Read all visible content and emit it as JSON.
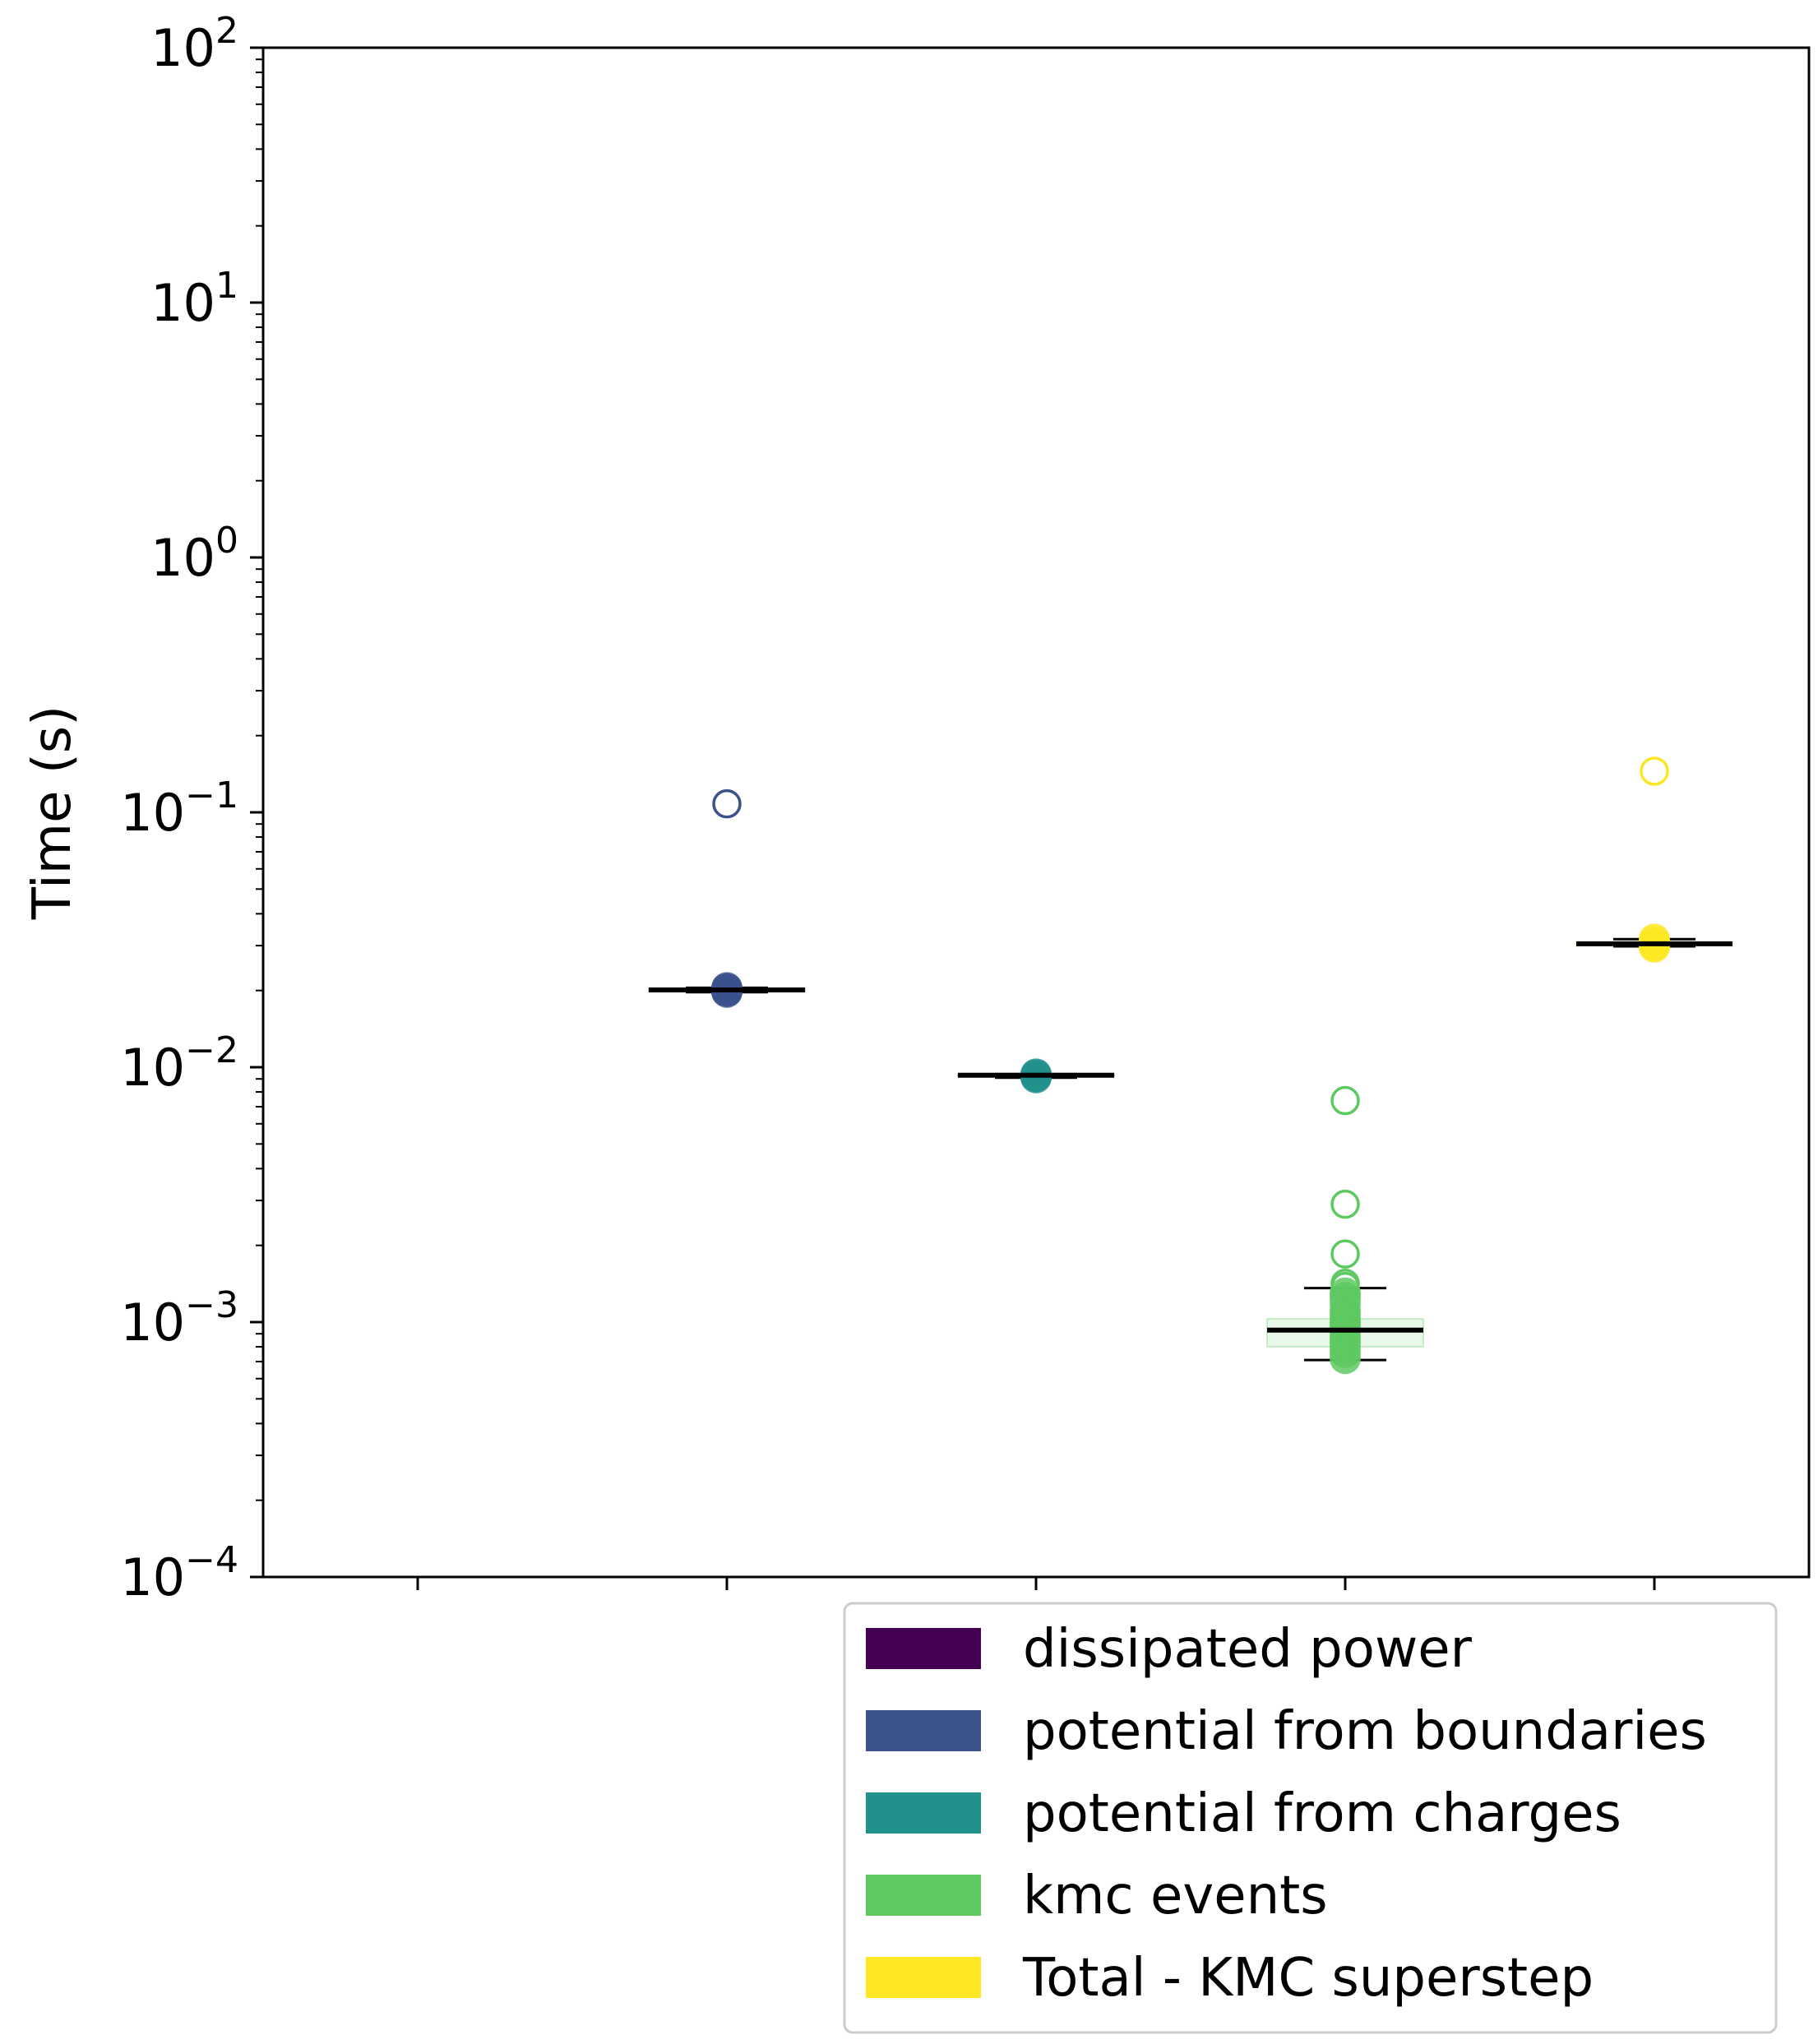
{
  "chart_data": {
    "type": "box",
    "ylabel": "Time (s)",
    "yscale": "log",
    "ylim": [
      0.0001,
      100
    ],
    "yticks": [
      {
        "base": "10",
        "exp": "2"
      },
      {
        "base": "10",
        "exp": "1"
      },
      {
        "base": "10",
        "exp": "0"
      },
      {
        "base": "10",
        "exp": "−1"
      },
      {
        "base": "10",
        "exp": "−2"
      },
      {
        "base": "10",
        "exp": "−3"
      },
      {
        "base": "10",
        "exp": "−4"
      }
    ],
    "xlim": [
      0.5,
      5.5
    ],
    "xticks": [
      1,
      2,
      3,
      4,
      5
    ],
    "grid": false,
    "legend_position": "below-right",
    "series": [
      {
        "name": "dissipated power",
        "x": 1,
        "color": "#440154",
        "samples": [],
        "median": null,
        "q1": null,
        "q3": null,
        "whisker_low": null,
        "whisker_high": null,
        "outliers": []
      },
      {
        "name": "potential from boundaries",
        "x": 2,
        "color": "#3b528b",
        "samples": [
          0.0197,
          0.0199,
          0.0201,
          0.0203,
          0.0205
        ],
        "median": 0.0201,
        "q1": 0.0199,
        "q3": 0.0203,
        "whisker_low": 0.0197,
        "whisker_high": 0.0205,
        "outliers": [
          0.108
        ]
      },
      {
        "name": "potential from charges",
        "x": 3,
        "color": "#21918c",
        "samples": [
          0.0091,
          0.0092,
          0.0093,
          0.0094
        ],
        "median": 0.0093,
        "q1": 0.0092,
        "q3": 0.0094,
        "whisker_low": 0.0091,
        "whisker_high": 0.0094,
        "outliers": []
      },
      {
        "name": "kmc events",
        "x": 4,
        "color": "#5ec962",
        "samples": [
          0.00072,
          0.00076,
          0.0008,
          0.00084,
          0.00088,
          0.00092,
          0.00096,
          0.001,
          0.00105,
          0.0011,
          0.00118,
          0.00125,
          0.0013
        ],
        "median": 0.00093,
        "q1": 0.0008,
        "q3": 0.00103,
        "whisker_low": 0.00071,
        "whisker_high": 0.00136,
        "outliers": [
          0.0074,
          0.0029,
          0.00185,
          0.00142,
          0.00138
        ]
      },
      {
        "name": "Total - KMC superstep",
        "x": 5,
        "color": "#fde725",
        "samples": [
          0.0296,
          0.0301,
          0.0305,
          0.031,
          0.0318
        ],
        "median": 0.0305,
        "q1": 0.0302,
        "q3": 0.0309,
        "whisker_low": 0.0298,
        "whisker_high": 0.0318,
        "outliers": [
          0.145
        ]
      }
    ]
  }
}
